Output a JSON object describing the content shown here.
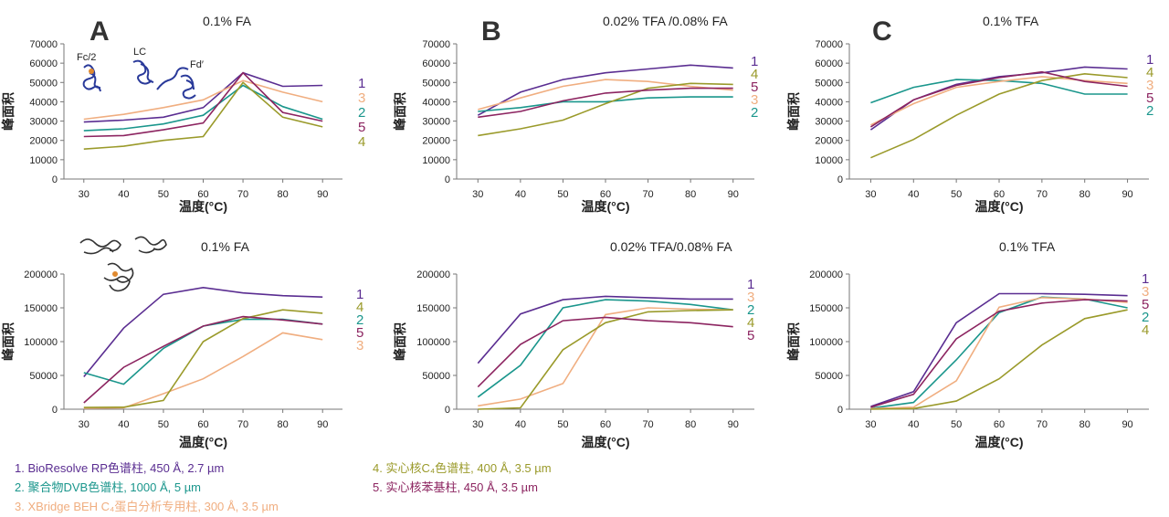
{
  "colors": {
    "s1": "#5a2d91",
    "s2": "#1a968c",
    "s3": "#f0ae80",
    "s4": "#9a9a2a",
    "s5": "#8c2460"
  },
  "legend": [
    {
      "id": "s1",
      "num": "1.",
      "text": "BioResolve RP色谱柱, 450 Å, 2.7 µm"
    },
    {
      "id": "s2",
      "num": "2.",
      "text": "聚合物DVB色谱柱, 1000 Å, 5 µm"
    },
    {
      "id": "s3",
      "num": "3.",
      "text": "XBridge BEH C₄蛋白分析专用柱, 300 Å, 3.5 µm"
    },
    {
      "id": "s4",
      "num": "4.",
      "text": "实心核C₄色谱柱, 400 Å, 3.5 µm"
    },
    {
      "id": "s5",
      "num": "5.",
      "text": "实心核苯基柱, 450 Å, 3.5 µm"
    }
  ],
  "panel_letters": [
    "A",
    "B",
    "C"
  ],
  "fragment_labels": [
    "Fc/2",
    "LC",
    "Fd′"
  ],
  "chart_data": [
    {
      "id": "A-top",
      "type": "line",
      "title": "0.1% FA",
      "xlabel": "温度(°C)",
      "ylabel": "峰面积",
      "x": [
        30,
        40,
        50,
        60,
        70,
        80,
        90
      ],
      "xlim": [
        25,
        95
      ],
      "ylim": [
        0,
        70000
      ],
      "yticks": [
        0,
        10000,
        20000,
        30000,
        40000,
        50000,
        60000,
        70000
      ],
      "label_order": [
        "1",
        "3",
        "2",
        "5",
        "4"
      ],
      "series": [
        {
          "name": "1",
          "values": [
            29500,
            30500,
            32000,
            37000,
            55000,
            48000,
            48500
          ]
        },
        {
          "name": "2",
          "values": [
            25000,
            26000,
            28500,
            33000,
            48500,
            37500,
            31000
          ]
        },
        {
          "name": "3",
          "values": [
            31000,
            33500,
            37000,
            41000,
            51000,
            45000,
            40000
          ]
        },
        {
          "name": "4",
          "values": [
            15500,
            17000,
            20000,
            22000,
            50000,
            32000,
            27000
          ]
        },
        {
          "name": "5",
          "values": [
            22000,
            22500,
            25500,
            29000,
            55000,
            34500,
            30000
          ]
        }
      ]
    },
    {
      "id": "B-top",
      "type": "line",
      "title": "0.02% TFA /0.08% FA",
      "xlabel": "温度(°C)",
      "ylabel": "峰面积",
      "x": [
        30,
        40,
        50,
        60,
        70,
        80,
        90
      ],
      "xlim": [
        25,
        95
      ],
      "ylim": [
        0,
        70000
      ],
      "yticks": [
        0,
        10000,
        20000,
        30000,
        40000,
        50000,
        60000,
        70000
      ],
      "label_order": [
        "1",
        "4",
        "5",
        "3",
        "2"
      ],
      "series": [
        {
          "name": "1",
          "values": [
            33000,
            45000,
            51500,
            55000,
            57000,
            59000,
            57500
          ]
        },
        {
          "name": "2",
          "values": [
            35000,
            37000,
            40000,
            40000,
            42000,
            42500,
            42500
          ]
        },
        {
          "name": "3",
          "values": [
            36000,
            42000,
            48000,
            51500,
            50500,
            48000,
            46000
          ]
        },
        {
          "name": "4",
          "values": [
            22500,
            26000,
            30500,
            39000,
            47000,
            49500,
            49000
          ]
        },
        {
          "name": "5",
          "values": [
            32000,
            35000,
            40500,
            44500,
            46000,
            47000,
            47000
          ]
        }
      ]
    },
    {
      "id": "C-top",
      "type": "line",
      "title": "0.1% TFA",
      "xlabel": "温度(°C)",
      "ylabel": "峰面积",
      "x": [
        30,
        40,
        50,
        60,
        70,
        80,
        90
      ],
      "xlim": [
        25,
        95
      ],
      "ylim": [
        0,
        70000
      ],
      "yticks": [
        0,
        10000,
        20000,
        30000,
        40000,
        50000,
        60000,
        70000
      ],
      "label_order": [
        "1",
        "4",
        "3",
        "5",
        "2"
      ],
      "series": [
        {
          "name": "1",
          "values": [
            25500,
            41000,
            49000,
            53000,
            55000,
            58000,
            57000
          ]
        },
        {
          "name": "2",
          "values": [
            39500,
            47500,
            51500,
            51000,
            49500,
            44000,
            44000
          ]
        },
        {
          "name": "3",
          "values": [
            28000,
            39000,
            47500,
            50500,
            53000,
            51000,
            49500
          ]
        },
        {
          "name": "4",
          "values": [
            11000,
            20500,
            33000,
            44000,
            51000,
            54500,
            52500
          ]
        },
        {
          "name": "5",
          "values": [
            27000,
            41000,
            48500,
            52500,
            55500,
            50500,
            48000
          ]
        }
      ]
    },
    {
      "id": "A-bottom",
      "type": "line",
      "title": "0.1% FA",
      "xlabel": "温度(°C)",
      "ylabel": "峰面积",
      "x": [
        30,
        40,
        50,
        60,
        70,
        80,
        90
      ],
      "xlim": [
        25,
        95
      ],
      "ylim": [
        0,
        200000
      ],
      "yticks": [
        0,
        50000,
        100000,
        150000,
        200000
      ],
      "label_order": [
        "1",
        "4",
        "2",
        "5",
        "3"
      ],
      "series": [
        {
          "name": "1",
          "values": [
            48000,
            120000,
            170000,
            180000,
            172000,
            168000,
            166000
          ]
        },
        {
          "name": "2",
          "values": [
            54000,
            37000,
            90000,
            123000,
            133000,
            133000,
            126000
          ]
        },
        {
          "name": "3",
          "values": [
            1500,
            2000,
            23000,
            45000,
            78000,
            113000,
            103000
          ]
        },
        {
          "name": "4",
          "values": [
            2500,
            3000,
            13000,
            100000,
            134000,
            147000,
            142000
          ]
        },
        {
          "name": "5",
          "values": [
            9500,
            62000,
            93000,
            123000,
            137000,
            132000,
            126000
          ]
        }
      ]
    },
    {
      "id": "B-bottom",
      "type": "line",
      "title": "0.02% TFA/0.08% FA",
      "xlabel": "温度(°C)",
      "ylabel": "峰面积",
      "x": [
        30,
        40,
        50,
        60,
        70,
        80,
        90
      ],
      "xlim": [
        25,
        95
      ],
      "ylim": [
        0,
        200000
      ],
      "yticks": [
        0,
        50000,
        100000,
        150000,
        200000
      ],
      "label_order": [
        "1",
        "3",
        "2",
        "4",
        "5"
      ],
      "series": [
        {
          "name": "1",
          "values": [
            68000,
            141000,
            162000,
            167000,
            165000,
            163000,
            163000
          ]
        },
        {
          "name": "2",
          "values": [
            18000,
            65000,
            150000,
            162000,
            160000,
            155000,
            147000
          ]
        },
        {
          "name": "3",
          "values": [
            5000,
            15000,
            38000,
            140000,
            150000,
            148000,
            147000
          ]
        },
        {
          "name": "4",
          "values": [
            0,
            2000,
            88000,
            128000,
            144000,
            146000,
            147000
          ]
        },
        {
          "name": "5",
          "values": [
            33000,
            96000,
            131000,
            136000,
            131000,
            128000,
            122000
          ]
        }
      ]
    },
    {
      "id": "C-bottom",
      "type": "line",
      "title": "0.1% TFA",
      "xlabel": "温度(°C)",
      "ylabel": "峰面积",
      "x": [
        30,
        40,
        50,
        60,
        70,
        80,
        90
      ],
      "xlim": [
        25,
        95
      ],
      "ylim": [
        0,
        200000
      ],
      "yticks": [
        0,
        50000,
        100000,
        150000,
        200000
      ],
      "label_order": [
        "1",
        "3",
        "5",
        "2",
        "4"
      ],
      "series": [
        {
          "name": "1",
          "values": [
            4000,
            26000,
            128000,
            171000,
            171000,
            170000,
            168000
          ]
        },
        {
          "name": "2",
          "values": [
            1500,
            10000,
            73000,
            143000,
            166000,
            163000,
            150000
          ]
        },
        {
          "name": "3",
          "values": [
            1000,
            3000,
            42000,
            151000,
            165000,
            163000,
            158000
          ]
        },
        {
          "name": "4",
          "values": [
            0,
            1000,
            12000,
            45000,
            95000,
            134000,
            147000
          ]
        },
        {
          "name": "5",
          "values": [
            3000,
            22000,
            104000,
            145000,
            157000,
            162000,
            160000
          ]
        }
      ]
    }
  ]
}
